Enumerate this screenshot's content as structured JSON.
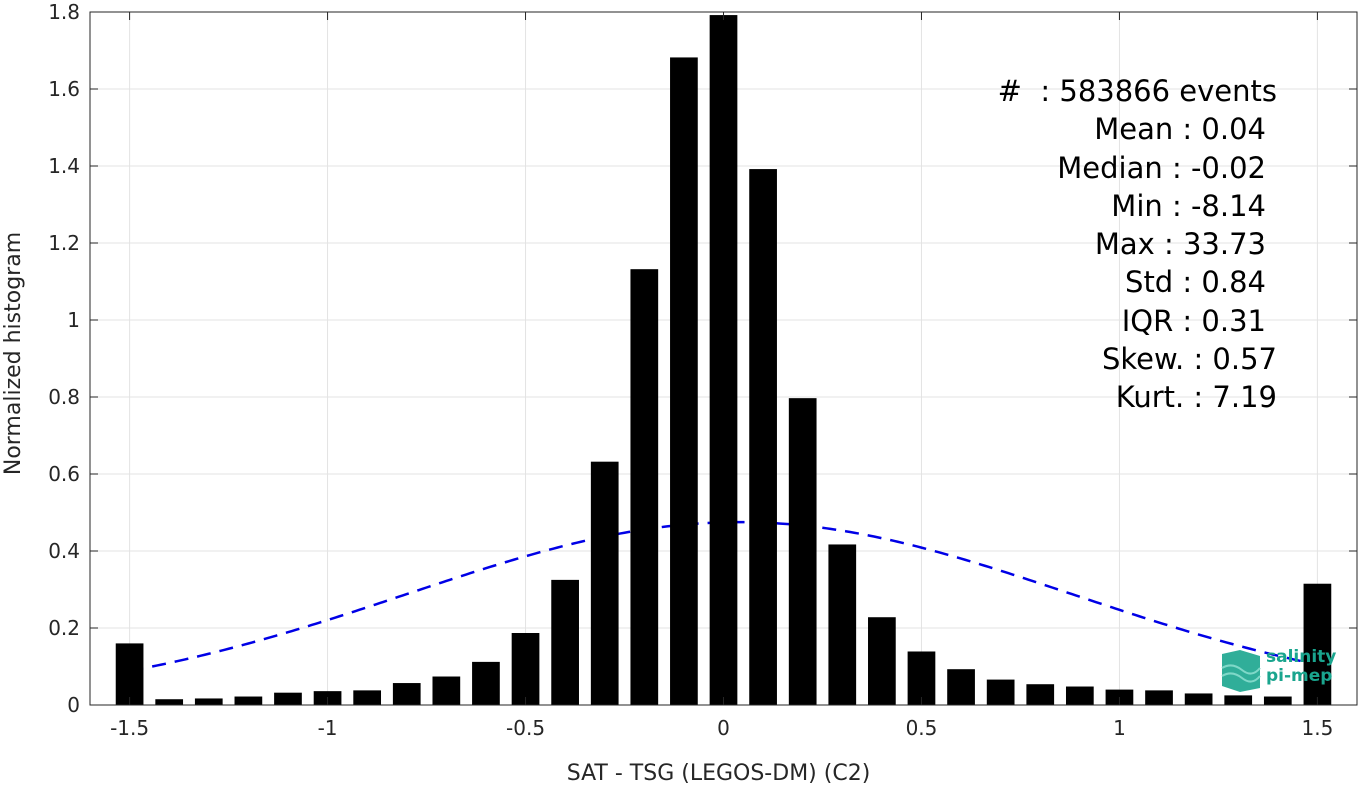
{
  "chart_data": {
    "type": "bar",
    "xlabel": "SAT - TSG (LEGOS-DM) (C2)",
    "ylabel": "Normalized histogram",
    "xlim": [
      -1.6,
      1.6
    ],
    "ylim": [
      0,
      1.8
    ],
    "xticks": [
      -1.5,
      -1,
      -0.5,
      0,
      0.5,
      1,
      1.5
    ],
    "xtick_labels": [
      "-1.5",
      "-1",
      "-0.5",
      "0",
      "0.5",
      "1",
      "1.5"
    ],
    "yticks": [
      0,
      0.2,
      0.4,
      0.6,
      0.8,
      1,
      1.2,
      1.4,
      1.6,
      1.8
    ],
    "ytick_labels": [
      "0",
      "0.2",
      "0.4",
      "0.6",
      "0.8",
      "1",
      "1.2",
      "1.4",
      "1.6",
      "1.8"
    ],
    "grid": true,
    "bar_color": "#000000",
    "bar_width": 0.07,
    "bins": [
      -1.5,
      -1.4,
      -1.3,
      -1.2,
      -1.1,
      -1.0,
      -0.9,
      -0.8,
      -0.7,
      -0.6,
      -0.5,
      -0.4,
      -0.3,
      -0.2,
      -0.1,
      0.0,
      0.1,
      0.2,
      0.3,
      0.4,
      0.5,
      0.6,
      0.7,
      0.8,
      0.9,
      1.0,
      1.1,
      1.2,
      1.3,
      1.4,
      1.5
    ],
    "values": [
      0.16,
      0.015,
      0.017,
      0.022,
      0.032,
      0.036,
      0.038,
      0.057,
      0.074,
      0.112,
      0.187,
      0.325,
      0.632,
      1.132,
      1.682,
      1.792,
      1.392,
      0.797,
      0.417,
      0.228,
      0.139,
      0.093,
      0.066,
      0.054,
      0.048,
      0.04,
      0.038,
      0.03,
      0.025,
      0.022,
      0.315
    ],
    "fit": {
      "type": "normal",
      "mean": 0.04,
      "std": 0.84,
      "scale": 1.0,
      "color": "#0000e6",
      "style": "dashed"
    },
    "annotations": [
      "#  : 583866 events",
      "Mean : 0.04",
      "Median : -0.02",
      "Min : -8.14",
      "Max : 33.73",
      "Std : 0.84",
      "IQR : 0.31",
      "Skew. : 0.57",
      "Kurt. : 7.19"
    ]
  },
  "logo": {
    "line1": "salinity",
    "line2": "pi-mep",
    "color": "#1aa58e"
  }
}
